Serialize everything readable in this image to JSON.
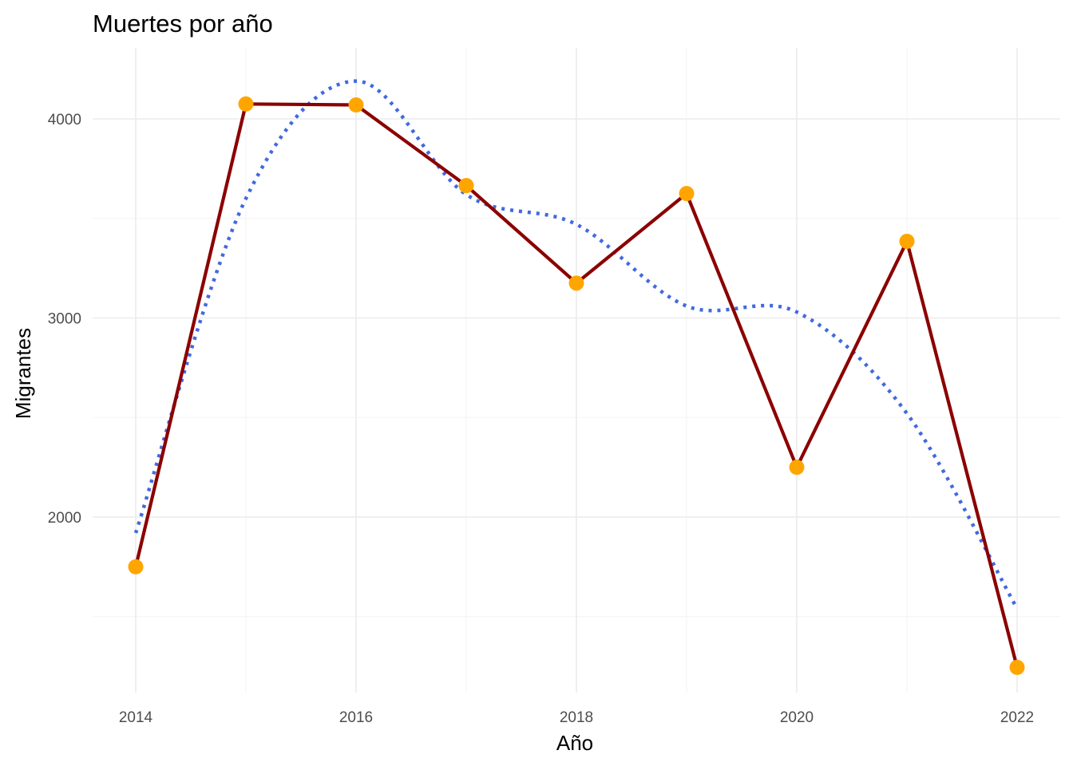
{
  "chart_data": {
    "type": "line",
    "title": "Muertes por año",
    "xlabel": "Año",
    "ylabel": "Migrantes",
    "x": [
      2014,
      2015,
      2016,
      2017,
      2018,
      2019,
      2020,
      2021,
      2022
    ],
    "xlim": [
      2014,
      2022
    ],
    "ylim": [
      1300,
      4250
    ],
    "x_ticks": [
      "2014",
      "2016",
      "2018",
      "2020",
      "2022"
    ],
    "y_ticks": [
      "2000",
      "3000",
      "4000"
    ],
    "grid": true,
    "legend": "none",
    "series": [
      {
        "kind": "line+points",
        "values": [
          1750,
          4075,
          4070,
          3665,
          3175,
          3625,
          2250,
          3385,
          1245
        ],
        "line_color": "#8b0000",
        "point_color": "#ffa500"
      },
      {
        "kind": "smooth-dotted",
        "values": [
          1920,
          3600,
          4190,
          3620,
          3470,
          3060,
          3030,
          2520,
          1540
        ],
        "line_color": "#4169e1"
      }
    ]
  }
}
